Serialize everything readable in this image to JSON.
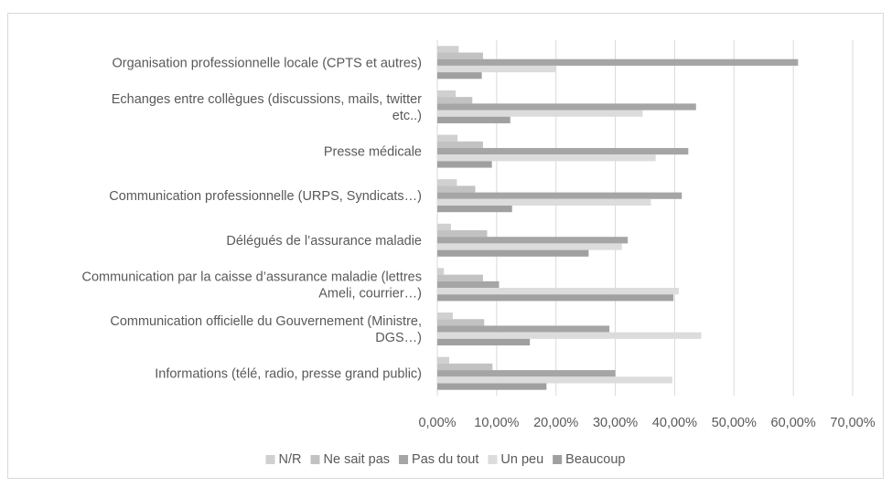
{
  "chart_data": {
    "type": "bar",
    "orientation": "horizontal",
    "categories": [
      [
        "Organisation professionnelle locale (CPTS et autres)"
      ],
      [
        "Echanges entre collègues (discussions, mails, twitter",
        "etc..)"
      ],
      [
        "Presse médicale"
      ],
      [
        "Communication professionnelle (URPS, Syndicats…)"
      ],
      [
        "Délégués de l’assurance maladie"
      ],
      [
        "Communication par la caisse d’assurance maladie (lettres",
        "Ameli, courrier…)"
      ],
      [
        "Communication officielle du Gouvernement (Ministre,",
        "DGS…)"
      ],
      [
        "Informations (télé, radio, presse grand public)"
      ]
    ],
    "series": [
      {
        "name": "N/R",
        "color": "#d0d0d0",
        "values": [
          3.6,
          3.1,
          3.4,
          3.3,
          2.3,
          1.1,
          2.6,
          2.0
        ]
      },
      {
        "name": "Ne sait pas",
        "color": "#c2c2c2",
        "values": [
          7.7,
          5.9,
          7.7,
          6.4,
          8.4,
          7.7,
          7.9,
          9.3
        ]
      },
      {
        "name": "Pas du tout",
        "color": "#a5a5a5",
        "values": [
          60.8,
          43.6,
          42.3,
          41.2,
          32.1,
          10.4,
          29.0,
          30.0
        ]
      },
      {
        "name": "Un peu",
        "color": "#dcdcdc",
        "values": [
          20.0,
          34.6,
          36.8,
          36.0,
          31.1,
          40.7,
          44.5,
          39.6
        ]
      },
      {
        "name": "Beaucoup",
        "color": "#a0a0a0",
        "values": [
          7.5,
          12.3,
          9.2,
          12.6,
          25.5,
          39.8,
          15.6,
          18.4
        ]
      }
    ],
    "xticks": [
      "0,00%",
      "10,00%",
      "20,00%",
      "30,00%",
      "40,00%",
      "50,00%",
      "60,00%",
      "70,00%"
    ],
    "xlim": [
      0,
      70
    ],
    "grid": "vertical",
    "gridColor": "#d9d9d9",
    "legend": "bottom"
  }
}
